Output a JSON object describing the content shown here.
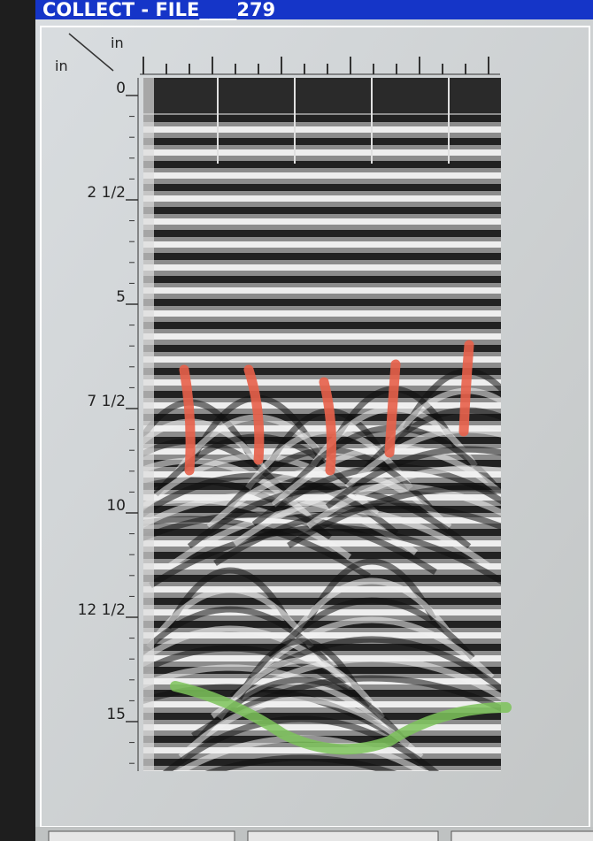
{
  "title_bar": {
    "text": "COLLECT - FILE____279"
  },
  "axis": {
    "corner_top": "in",
    "corner_left": "in",
    "depth_labels": [
      "0",
      "2 1/2",
      "5",
      "7 1/2",
      "10",
      "12 1/2",
      "15"
    ]
  }
}
